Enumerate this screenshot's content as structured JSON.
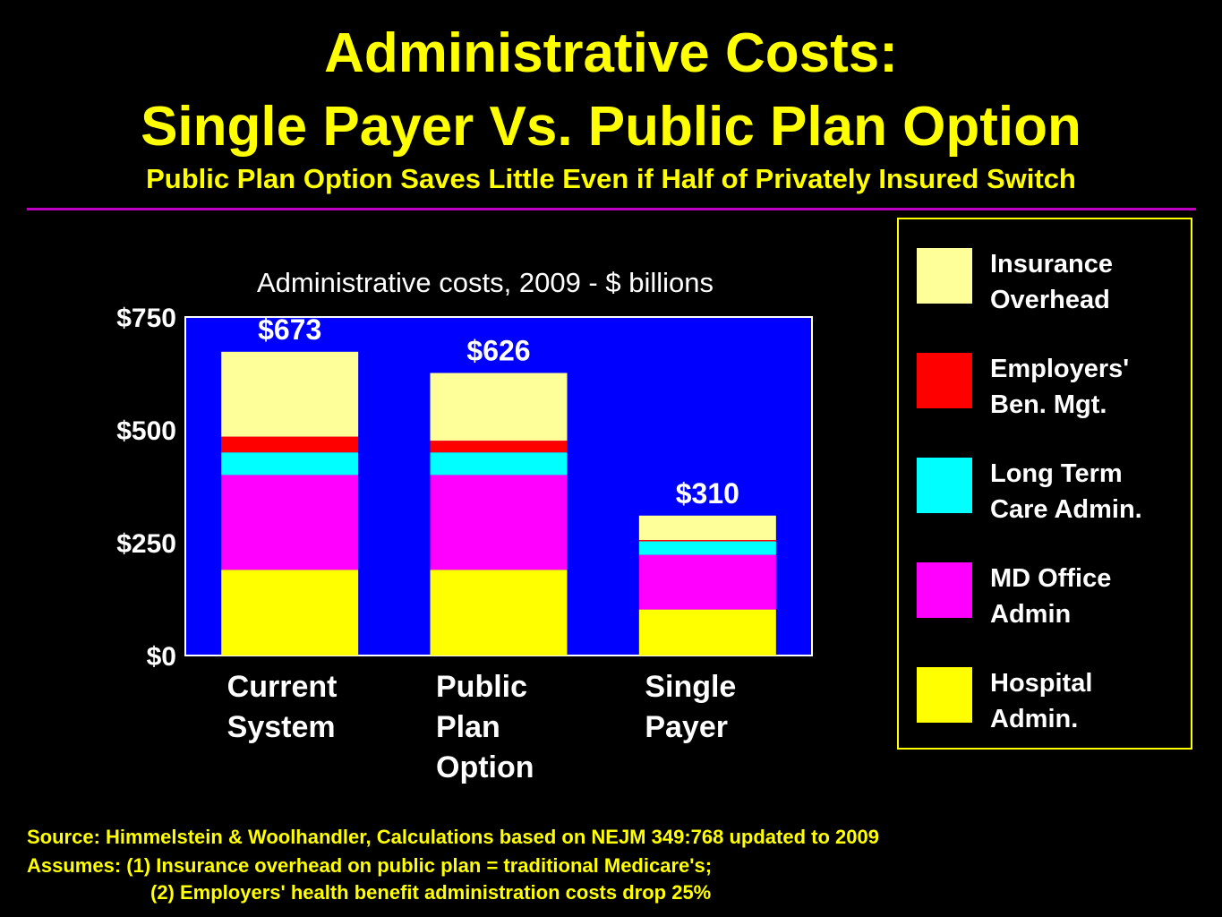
{
  "slide": {
    "title_line1": "Administrative Costs:",
    "title_line2": "Single Payer Vs. Public Plan Option",
    "subtitle": "Public Plan Option Saves Little Even if Half of Privately Insured Switch",
    "source": "Source: Himmelstein & Woolhandler, Calculations based on NEJM 349:768 updated to 2009",
    "assumption_1": "Assumes: (1) Insurance overhead on public plan = traditional Medicare's;",
    "assumption_2": "(2) Employers' health benefit administration costs drop 25%"
  },
  "chart_data": {
    "type": "bar",
    "stacked": true,
    "title": "Administrative costs, 2009 - $ billions",
    "categories": [
      "Current\nSystem",
      "Public\nPlan\nOption",
      "Single\nPayer"
    ],
    "totals": [
      673,
      626,
      310
    ],
    "total_labels": [
      "$673",
      "$626",
      "$310"
    ],
    "ylim": [
      0,
      750
    ],
    "yticks": [
      0,
      250,
      500,
      750
    ],
    "ytick_labels": [
      "$0",
      "$250",
      "$500",
      "$750"
    ],
    "grid": false,
    "plot_background": "#0000ff",
    "legend_position": "right",
    "series": [
      {
        "name": "Hospital\nAdmin.",
        "color": "#ffff00",
        "values": [
          190,
          190,
          102
        ]
      },
      {
        "name": "MD Office\nAdmin",
        "color": "#ff00ff",
        "values": [
          210,
          210,
          121
        ]
      },
      {
        "name": "Long Term\nCare Admin.",
        "color": "#00ffff",
        "values": [
          50,
          50,
          30
        ]
      },
      {
        "name": "Employers'\nBen. Mgt.",
        "color": "#ff0000",
        "values": [
          35,
          26,
          3
        ]
      },
      {
        "name": "Insurance\nOverhead",
        "color": "#ffff99",
        "values": [
          188,
          150,
          54
        ]
      }
    ]
  }
}
